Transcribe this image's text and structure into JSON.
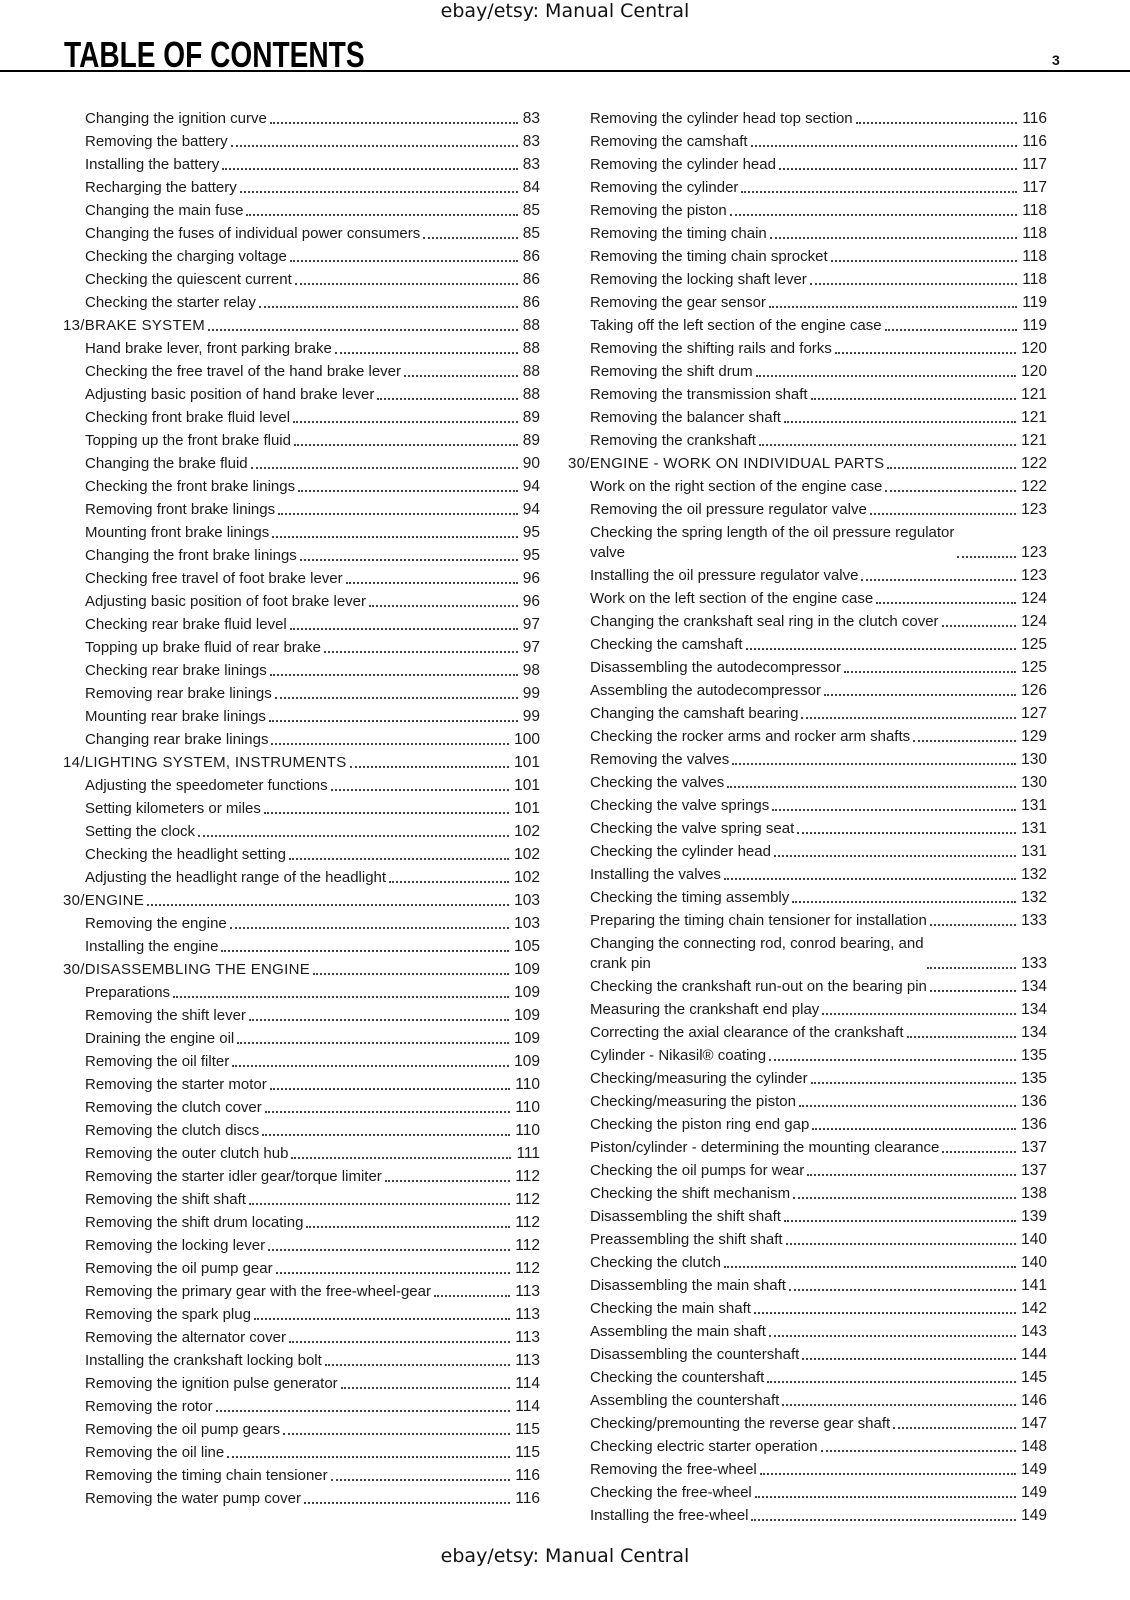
{
  "watermark_top": "ebay/etsy: Manual Central",
  "watermark_bottom": "ebay/etsy: Manual Central",
  "title": "TABLE OF CONTENTS",
  "page_number": "3",
  "left": [
    {
      "level": 1,
      "title": "Changing the ignition curve",
      "page": "83"
    },
    {
      "level": 1,
      "title": "Removing the battery",
      "page": "83"
    },
    {
      "level": 1,
      "title": "Installing the battery",
      "page": "83"
    },
    {
      "level": 1,
      "title": "Recharging the battery",
      "page": "84"
    },
    {
      "level": 1,
      "title": "Changing the main fuse",
      "page": "85"
    },
    {
      "level": 1,
      "title": "Changing the fuses of individual power consumers",
      "page": "85"
    },
    {
      "level": 1,
      "title": "Checking the charging voltage",
      "page": "86"
    },
    {
      "level": 1,
      "title": "Checking the quiescent current",
      "page": "86"
    },
    {
      "level": 1,
      "title": "Checking the starter relay",
      "page": "86"
    },
    {
      "level": 0,
      "title": "13/BRAKE SYSTEM",
      "page": "88"
    },
    {
      "level": 1,
      "title": "Hand brake lever, front parking brake",
      "page": "88"
    },
    {
      "level": 1,
      "title": "Checking the free travel of the hand brake lever",
      "page": "88"
    },
    {
      "level": 1,
      "title": "Adjusting basic position of hand brake lever",
      "page": "88"
    },
    {
      "level": 1,
      "title": "Checking front brake fluid level",
      "page": "89"
    },
    {
      "level": 1,
      "title": "Topping up the front brake fluid",
      "page": "89"
    },
    {
      "level": 1,
      "title": "Changing the brake fluid",
      "page": "90"
    },
    {
      "level": 1,
      "title": "Checking the front brake linings",
      "page": "94"
    },
    {
      "level": 1,
      "title": "Removing front brake linings",
      "page": "94"
    },
    {
      "level": 1,
      "title": "Mounting front brake linings",
      "page": "95"
    },
    {
      "level": 1,
      "title": "Changing the front brake linings",
      "page": "95"
    },
    {
      "level": 1,
      "title": "Checking free travel of foot brake lever",
      "page": "96"
    },
    {
      "level": 1,
      "title": "Adjusting basic position of foot brake lever",
      "page": "96"
    },
    {
      "level": 1,
      "title": "Checking rear brake fluid level",
      "page": "97"
    },
    {
      "level": 1,
      "title": "Topping up brake fluid of rear brake",
      "page": "97"
    },
    {
      "level": 1,
      "title": "Checking rear brake linings",
      "page": "98"
    },
    {
      "level": 1,
      "title": "Removing rear brake linings",
      "page": "99"
    },
    {
      "level": 1,
      "title": "Mounting rear brake linings",
      "page": "99"
    },
    {
      "level": 1,
      "title": "Changing rear brake linings",
      "page": "100"
    },
    {
      "level": 0,
      "title": "14/LIGHTING SYSTEM, INSTRUMENTS",
      "page": "101"
    },
    {
      "level": 1,
      "title": "Adjusting the speedometer functions",
      "page": "101"
    },
    {
      "level": 1,
      "title": "Setting kilometers or miles",
      "page": "101"
    },
    {
      "level": 1,
      "title": "Setting the clock",
      "page": "102"
    },
    {
      "level": 1,
      "title": "Checking the headlight setting",
      "page": "102"
    },
    {
      "level": 1,
      "title": "Adjusting the headlight range of the headlight",
      "page": "102"
    },
    {
      "level": 0,
      "title": "30/ENGINE",
      "page": "103"
    },
    {
      "level": 1,
      "title": "Removing the engine",
      "page": "103"
    },
    {
      "level": 1,
      "title": "Installing the engine",
      "page": "105"
    },
    {
      "level": 0,
      "title": "30/DISASSEMBLING THE ENGINE",
      "page": "109"
    },
    {
      "level": 1,
      "title": "Preparations",
      "page": "109"
    },
    {
      "level": 1,
      "title": "Removing the shift lever",
      "page": "109"
    },
    {
      "level": 1,
      "title": "Draining the engine oil",
      "page": "109"
    },
    {
      "level": 1,
      "title": "Removing the oil filter",
      "page": "109"
    },
    {
      "level": 1,
      "title": "Removing the starter motor",
      "page": "110"
    },
    {
      "level": 1,
      "title": "Removing the clutch cover",
      "page": "110"
    },
    {
      "level": 1,
      "title": "Removing the clutch discs",
      "page": "110"
    },
    {
      "level": 1,
      "title": "Removing the outer clutch hub",
      "page": "111"
    },
    {
      "level": 1,
      "title": "Removing the starter idler gear/torque limiter",
      "page": "112"
    },
    {
      "level": 1,
      "title": "Removing the shift shaft",
      "page": "112"
    },
    {
      "level": 1,
      "title": "Removing the shift drum locating",
      "page": "112"
    },
    {
      "level": 1,
      "title": "Removing the locking lever",
      "page": "112"
    },
    {
      "level": 1,
      "title": "Removing the oil pump gear",
      "page": "112"
    },
    {
      "level": 1,
      "title": "Removing the primary gear with the free-wheel-gear",
      "page": "113"
    },
    {
      "level": 1,
      "title": "Removing the spark plug",
      "page": "113"
    },
    {
      "level": 1,
      "title": "Removing the alternator cover",
      "page": "113"
    },
    {
      "level": 1,
      "title": "Installing the crankshaft locking bolt",
      "page": "113"
    },
    {
      "level": 1,
      "title": "Removing the ignition pulse generator",
      "page": "114"
    },
    {
      "level": 1,
      "title": "Removing the rotor",
      "page": "114"
    },
    {
      "level": 1,
      "title": "Removing the oil pump gears",
      "page": "115"
    },
    {
      "level": 1,
      "title": "Removing the oil line",
      "page": "115"
    },
    {
      "level": 1,
      "title": "Removing the timing chain tensioner",
      "page": "116"
    },
    {
      "level": 1,
      "title": "Removing the water pump cover",
      "page": "116"
    }
  ],
  "right": [
    {
      "level": 1,
      "title": "Removing the cylinder head top section",
      "page": "116"
    },
    {
      "level": 1,
      "title": "Removing the camshaft",
      "page": "116"
    },
    {
      "level": 1,
      "title": "Removing the cylinder head",
      "page": "117"
    },
    {
      "level": 1,
      "title": "Removing the cylinder",
      "page": "117"
    },
    {
      "level": 1,
      "title": "Removing the piston",
      "page": "118"
    },
    {
      "level": 1,
      "title": "Removing the timing chain",
      "page": "118"
    },
    {
      "level": 1,
      "title": "Removing the timing chain sprocket",
      "page": "118"
    },
    {
      "level": 1,
      "title": "Removing the locking shaft lever",
      "page": "118"
    },
    {
      "level": 1,
      "title": "Removing the gear sensor",
      "page": "119"
    },
    {
      "level": 1,
      "title": "Taking off the left section of the engine case",
      "page": "119"
    },
    {
      "level": 1,
      "title": "Removing the shifting rails and forks",
      "page": "120"
    },
    {
      "level": 1,
      "title": "Removing the shift drum",
      "page": "120"
    },
    {
      "level": 1,
      "title": "Removing the transmission shaft",
      "page": "121"
    },
    {
      "level": 1,
      "title": "Removing the balancer shaft",
      "page": "121"
    },
    {
      "level": 1,
      "title": "Removing the crankshaft",
      "page": "121"
    },
    {
      "level": 0,
      "title": "30/ENGINE - WORK ON INDIVIDUAL PARTS",
      "page": "122"
    },
    {
      "level": 1,
      "title": "Work on the right section of the engine case",
      "page": "122"
    },
    {
      "level": 1,
      "title": "Removing the oil pressure regulator valve",
      "page": "123"
    },
    {
      "level": 1,
      "title": "Checking the spring length of the oil pressure regulator\nvalve",
      "page": "123"
    },
    {
      "level": 1,
      "title": "Installing the oil pressure regulator valve",
      "page": "123"
    },
    {
      "level": 1,
      "title": "Work on the left section of the engine case",
      "page": "124"
    },
    {
      "level": 1,
      "title": "Changing the crankshaft seal ring in the clutch cover",
      "page": "124"
    },
    {
      "level": 1,
      "title": "Checking the camshaft",
      "page": "125"
    },
    {
      "level": 1,
      "title": "Disassembling the autodecompressor",
      "page": "125"
    },
    {
      "level": 1,
      "title": "Assembling the autodecompressor",
      "page": "126"
    },
    {
      "level": 1,
      "title": "Changing the camshaft bearing",
      "page": "127"
    },
    {
      "level": 1,
      "title": "Checking the rocker arms and rocker arm shafts",
      "page": "129"
    },
    {
      "level": 1,
      "title": "Removing the valves",
      "page": "130"
    },
    {
      "level": 1,
      "title": "Checking the valves",
      "page": "130"
    },
    {
      "level": 1,
      "title": "Checking the valve springs",
      "page": "131"
    },
    {
      "level": 1,
      "title": "Checking the valve spring seat",
      "page": "131"
    },
    {
      "level": 1,
      "title": "Checking the cylinder head",
      "page": "131"
    },
    {
      "level": 1,
      "title": "Installing the valves",
      "page": "132"
    },
    {
      "level": 1,
      "title": "Checking the timing assembly",
      "page": "132"
    },
    {
      "level": 1,
      "title": "Preparing the timing chain tensioner for installation",
      "page": "133"
    },
    {
      "level": 1,
      "title": "Changing the connecting rod, conrod bearing, and\ncrank pin",
      "page": "133"
    },
    {
      "level": 1,
      "title": "Checking the crankshaft run-out on the bearing pin",
      "page": "134"
    },
    {
      "level": 1,
      "title": "Measuring the crankshaft end play",
      "page": "134"
    },
    {
      "level": 1,
      "title": "Correcting the axial clearance of the crankshaft",
      "page": "134"
    },
    {
      "level": 1,
      "title": "Cylinder - Nikasil® coating",
      "page": "135"
    },
    {
      "level": 1,
      "title": "Checking/measuring the cylinder",
      "page": "135"
    },
    {
      "level": 1,
      "title": "Checking/measuring the piston",
      "page": "136"
    },
    {
      "level": 1,
      "title": "Checking the piston ring end gap",
      "page": "136"
    },
    {
      "level": 1,
      "title": "Piston/cylinder - determining the mounting clearance",
      "page": "137"
    },
    {
      "level": 1,
      "title": "Checking the oil pumps for wear",
      "page": "137"
    },
    {
      "level": 1,
      "title": "Checking the shift mechanism",
      "page": "138"
    },
    {
      "level": 1,
      "title": "Disassembling the shift shaft",
      "page": "139"
    },
    {
      "level": 1,
      "title": "Preassembling the shift shaft",
      "page": "140"
    },
    {
      "level": 1,
      "title": "Checking the clutch",
      "page": "140"
    },
    {
      "level": 1,
      "title": "Disassembling the main shaft",
      "page": "141"
    },
    {
      "level": 1,
      "title": "Checking the main shaft",
      "page": "142"
    },
    {
      "level": 1,
      "title": "Assembling the main shaft",
      "page": "143"
    },
    {
      "level": 1,
      "title": "Disassembling the countershaft",
      "page": "144"
    },
    {
      "level": 1,
      "title": "Checking the countershaft",
      "page": "145"
    },
    {
      "level": 1,
      "title": "Assembling the countershaft",
      "page": "146"
    },
    {
      "level": 1,
      "title": "Checking/premounting the reverse gear shaft",
      "page": "147"
    },
    {
      "level": 1,
      "title": "Checking electric starter operation",
      "page": "148"
    },
    {
      "level": 1,
      "title": "Removing the free-wheel",
      "page": "149"
    },
    {
      "level": 1,
      "title": "Checking the free-wheel",
      "page": "149"
    },
    {
      "level": 1,
      "title": "Installing the free-wheel",
      "page": "149"
    }
  ]
}
